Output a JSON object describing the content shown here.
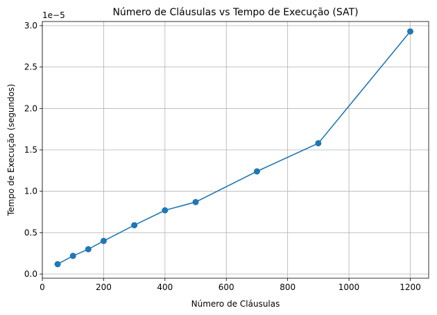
{
  "chart_data": {
    "type": "line",
    "title": "Número de Cláusulas vs Tempo de Execução (SAT)",
    "xlabel": "Número de Cláusulas",
    "ylabel": "Tempo de Execução (segundos)",
    "y_offset_label": "1e−5",
    "xlim": [
      0,
      1260
    ],
    "ylim": [
      -0.05,
      3.05
    ],
    "x_ticks": [
      0,
      200,
      400,
      600,
      800,
      1000,
      1200
    ],
    "x_tick_labels": [
      "0",
      "200",
      "400",
      "600",
      "800",
      "1000",
      "1200"
    ],
    "y_ticks": [
      0.0,
      0.5,
      1.0,
      1.5,
      2.0,
      2.5,
      3.0
    ],
    "y_tick_labels": [
      "0.0",
      "0.5",
      "1.0",
      "1.5",
      "2.0",
      "2.5",
      "3.0"
    ],
    "grid": true,
    "color": "#1f77b4",
    "marker": "circle",
    "series": [
      {
        "x": [
          50,
          100,
          150,
          200,
          300,
          400,
          500,
          700,
          900,
          1200
        ],
        "y": [
          0.12,
          0.22,
          0.3,
          0.4,
          0.59,
          0.77,
          0.87,
          1.24,
          1.58,
          2.93
        ]
      }
    ]
  }
}
